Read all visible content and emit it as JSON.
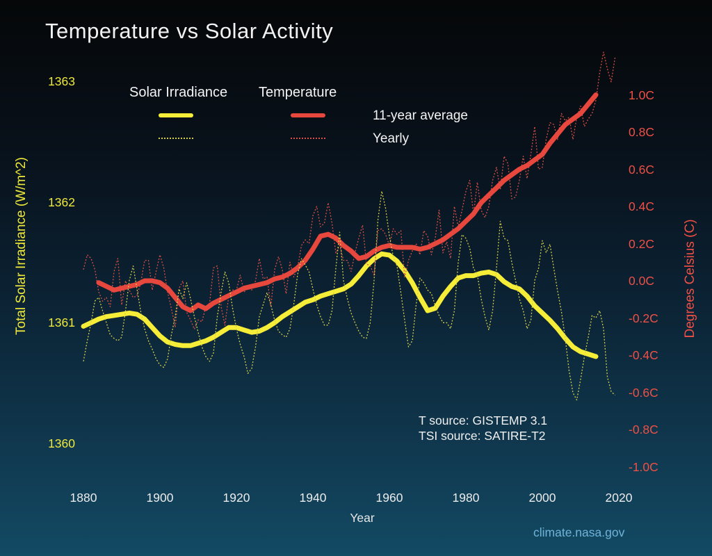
{
  "title": "Temperature vs Solar Activity",
  "legend": {
    "solar_title": "Solar Irradiance",
    "temp_title": "Temperature",
    "avg_label": "11-year average",
    "yearly_label": "Yearly"
  },
  "axes": {
    "x": {
      "label": "Year",
      "ticks": [
        1880,
        1900,
        1920,
        1940,
        1960,
        1980,
        2000,
        2020
      ],
      "range": [
        1878,
        2022
      ]
    },
    "left": {
      "label": "Total Solar Irradiance (W/m^2)",
      "ticks": [
        1363,
        1362,
        1361,
        1360
      ],
      "range": [
        1359.9,
        1363.05
      ],
      "color": "#efe93b"
    },
    "right": {
      "label": "Degrees Celsius (C)",
      "ticks": [
        "1.0C",
        "0.8C",
        "0.6C",
        "0.4C",
        "0.2C",
        "0.0C",
        "-0.2C",
        "-0.4C",
        "-0.6C",
        "-0.8C",
        "-1.0C"
      ],
      "tick_values": [
        1.0,
        0.8,
        0.6,
        0.4,
        0.2,
        0.0,
        -0.2,
        -0.4,
        -0.6,
        -0.8,
        -1.0
      ],
      "range": [
        -1.25,
        1.3
      ],
      "color": "#ef5046"
    }
  },
  "annotations": {
    "t_source": "T source: GISTEMP 3.1",
    "tsi_source": "TSI source: SATIRE-T2",
    "site": "climate.nasa.gov"
  },
  "colors": {
    "background_top": "#050708",
    "background_bottom": "#134a64",
    "solar_thick": "#f6ed38",
    "solar_thin": "#d5cf4c",
    "temp_thick": "#e8473d",
    "temp_thin": "#d84f45",
    "title_text": "#f2f2f2",
    "site_link": "#6fb3d9"
  },
  "chart_data": {
    "type": "line",
    "title": "Temperature vs Solar Activity",
    "xlabel": "Year",
    "ylabel_left": "Total Solar Irradiance (W/m^2)",
    "ylabel_right": "Degrees Celsius (C)",
    "grid": false,
    "legend_position": "top-center",
    "series": [
      {
        "name": "Solar Irradiance 11-year average",
        "axis": "left",
        "style": "thick",
        "color": "#f6ed38",
        "x_start": 1880,
        "x_step": 2,
        "values": [
          1360.97,
          1361.0,
          1361.03,
          1361.05,
          1361.06,
          1361.07,
          1361.08,
          1361.07,
          1361.03,
          1360.96,
          1360.89,
          1360.84,
          1360.82,
          1360.81,
          1360.81,
          1360.83,
          1360.85,
          1360.88,
          1360.92,
          1360.96,
          1360.96,
          1360.94,
          1360.92,
          1360.93,
          1360.96,
          1361.0,
          1361.05,
          1361.09,
          1361.13,
          1361.17,
          1361.19,
          1361.22,
          1361.24,
          1361.26,
          1361.28,
          1361.32,
          1361.39,
          1361.47,
          1361.53,
          1361.57,
          1361.56,
          1361.51,
          1361.43,
          1361.33,
          1361.21,
          1361.1,
          1361.12,
          1361.22,
          1361.3,
          1361.37,
          1361.39,
          1361.39,
          1361.41,
          1361.42,
          1361.4,
          1361.34,
          1361.3,
          1361.28,
          1361.22,
          1361.14,
          1361.08,
          1361.02,
          1360.95,
          1360.87,
          1360.8,
          1360.76,
          1360.74,
          1360.72
        ]
      },
      {
        "name": "Solar Irradiance Yearly",
        "axis": "left",
        "style": "thin-dotted",
        "color": "#d5cf4c",
        "x_start": 1880,
        "x_step": 1,
        "values": [
          1360.68,
          1360.85,
          1361.0,
          1361.18,
          1361.21,
          1361.1,
          1361.0,
          1360.9,
          1360.87,
          1360.85,
          1360.88,
          1361.1,
          1361.35,
          1361.47,
          1361.28,
          1361.09,
          1360.95,
          1360.85,
          1360.78,
          1360.7,
          1360.65,
          1360.63,
          1360.7,
          1360.9,
          1361.05,
          1361.28,
          1361.2,
          1361.33,
          1361.2,
          1361.05,
          1360.92,
          1360.8,
          1360.72,
          1360.68,
          1360.75,
          1361.05,
          1361.25,
          1361.42,
          1361.33,
          1361.12,
          1360.95,
          1360.82,
          1360.72,
          1360.58,
          1360.62,
          1360.8,
          1361.05,
          1361.15,
          1361.25,
          1361.15,
          1361.02,
          1360.93,
          1360.9,
          1360.88,
          1360.95,
          1361.15,
          1361.4,
          1361.53,
          1361.48,
          1361.42,
          1361.28,
          1361.15,
          1361.05,
          1360.98,
          1360.98,
          1361.1,
          1361.45,
          1361.75,
          1361.35,
          1361.2,
          1361.08,
          1361.0,
          1360.93,
          1360.88,
          1360.87,
          1361.0,
          1361.35,
          1361.85,
          1362.09,
          1361.95,
          1361.72,
          1361.55,
          1361.47,
          1361.25,
          1361.02,
          1360.8,
          1360.85,
          1361.15,
          1361.37,
          1361.33,
          1361.27,
          1361.24,
          1361.14,
          1361.06,
          1361.0,
          1361.0,
          1360.95,
          1361.1,
          1361.5,
          1361.73,
          1361.7,
          1361.62,
          1361.45,
          1361.4,
          1361.2,
          1361.05,
          1360.94,
          1361.1,
          1361.45,
          1361.84,
          1361.7,
          1361.68,
          1361.5,
          1361.35,
          1361.2,
          1361.1,
          1360.95,
          1361.02,
          1361.35,
          1361.45,
          1361.68,
          1361.58,
          1361.65,
          1361.45,
          1361.26,
          1361.09,
          1360.87,
          1360.6,
          1360.42,
          1360.36,
          1360.53,
          1360.72,
          1360.88,
          1361.06,
          1361.04,
          1361.1,
          1360.95,
          1360.55,
          1360.43,
          1360.4
        ]
      },
      {
        "name": "Temperature 11-year average",
        "axis": "right",
        "style": "thick",
        "color": "#e8473d",
        "x_start": 1884,
        "x_step": 2,
        "values": [
          -0.01,
          -0.03,
          -0.05,
          -0.04,
          -0.03,
          -0.02,
          0.0,
          0.0,
          -0.01,
          -0.04,
          -0.09,
          -0.14,
          -0.16,
          -0.13,
          -0.15,
          -0.12,
          -0.1,
          -0.08,
          -0.06,
          -0.04,
          -0.03,
          -0.02,
          -0.01,
          0.01,
          0.02,
          0.04,
          0.07,
          0.11,
          0.17,
          0.24,
          0.25,
          0.23,
          0.19,
          0.16,
          0.12,
          0.13,
          0.16,
          0.18,
          0.19,
          0.18,
          0.18,
          0.18,
          0.17,
          0.18,
          0.2,
          0.22,
          0.25,
          0.28,
          0.32,
          0.36,
          0.42,
          0.46,
          0.5,
          0.54,
          0.57,
          0.6,
          0.62,
          0.65,
          0.68,
          0.74,
          0.79,
          0.84,
          0.87,
          0.9,
          0.95,
          1.0
        ]
      },
      {
        "name": "Temperature Yearly",
        "axis": "right",
        "style": "thin-dotted",
        "color": "#d84f45",
        "x_start": 1880,
        "x_step": 1,
        "values": [
          0.06,
          0.14,
          0.12,
          0.06,
          -0.06,
          -0.11,
          -0.09,
          -0.14,
          0.05,
          0.12,
          -0.13,
          0.0,
          -0.05,
          -0.09,
          -0.08,
          -0.01,
          0.11,
          0.11,
          -0.05,
          0.05,
          0.14,
          0.07,
          -0.06,
          -0.15,
          -0.25,
          -0.04,
          0.0,
          -0.17,
          -0.21,
          -0.26,
          -0.21,
          -0.22,
          -0.14,
          -0.12,
          0.07,
          0.08,
          -0.14,
          -0.24,
          -0.08,
          -0.05,
          -0.05,
          0.03,
          -0.06,
          -0.04,
          -0.05,
          0.0,
          0.12,
          0.01,
          0.02,
          -0.14,
          0.06,
          0.13,
          0.06,
          -0.07,
          0.1,
          0.02,
          0.07,
          0.19,
          0.22,
          0.2,
          0.35,
          0.4,
          0.29,
          0.31,
          0.42,
          0.31,
          0.15,
          0.19,
          0.11,
          0.11,
          0.05,
          0.15,
          0.23,
          0.3,
          0.09,
          0.08,
          0.03,
          0.27,
          0.28,
          0.25,
          0.19,
          0.28,
          0.25,
          0.27,
          0.02,
          0.11,
          0.16,
          0.2,
          0.14,
          0.27,
          0.24,
          0.14,
          0.23,
          0.38,
          0.15,
          0.21,
          0.12,
          0.4,
          0.29,
          0.38,
          0.48,
          0.54,
          0.36,
          0.53,
          0.38,
          0.34,
          0.4,
          0.54,
          0.61,
          0.49,
          0.67,
          0.63,
          0.44,
          0.45,
          0.54,
          0.67,
          0.55,
          0.68,
          0.83,
          0.6,
          0.61,
          0.76,
          0.85,
          0.84,
          0.76,
          0.9,
          0.86,
          0.88,
          0.76,
          0.88,
          0.94,
          0.83,
          0.87,
          0.9,
          0.97,
          1.12,
          1.23,
          1.14,
          1.07,
          1.2
        ]
      }
    ]
  }
}
